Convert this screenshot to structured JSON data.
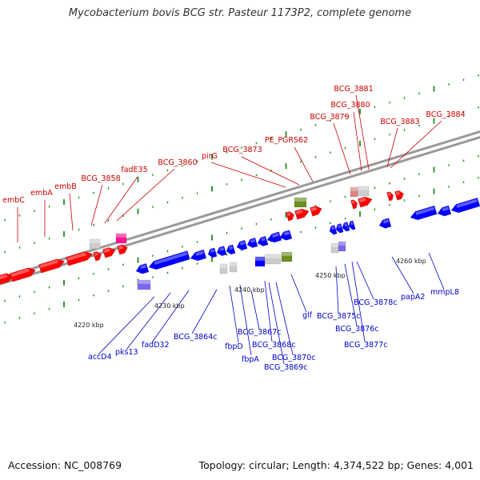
{
  "title": "Mycobacterium bovis BCG str. Pasteur 1173P2, complete genome",
  "footer": {
    "accession": "Accession: NC_008769",
    "topology": "Topology: circular; Length: 4,374,522 bp; Genes: 4,001"
  },
  "colors": {
    "forward": "#ff0000",
    "reverse": "#0000ff",
    "forward_label": "#cc0000",
    "reverse_label": "#0000cc",
    "rna": "#cccccc",
    "pink": "#ff1493",
    "olive": "#6b8e23",
    "purple": "#7b68ee",
    "backbone": "#999999",
    "tick": "#228b22"
  },
  "scale": {
    "ticks": [
      "4220 kbp",
      "4230 kbp",
      "4240 kbp",
      "4250 kbp",
      "4260 kbp"
    ]
  },
  "forward_labels": [
    "embC",
    "embA",
    "embB",
    "BCG_3858",
    "fadE35",
    "BCG_3860",
    "pirG",
    "BCG_3873",
    "PE_PGRS62",
    "BCG_3879",
    "BCG_3880",
    "BCG_3881",
    "BCG_3883",
    "BCG_3884"
  ],
  "reverse_labels": [
    "accD4",
    "pks13",
    "fadD32",
    "BCG_3864c",
    "fbpD",
    "fbpA",
    "BCG_3867c",
    "BCG_3868c",
    "BCG_3870c",
    "BCG_3869c",
    "glf",
    "BCG_3875c",
    "BCG_3876c",
    "BCG_3877c",
    "BCG_3878c",
    "papA2",
    "mmpL8"
  ]
}
